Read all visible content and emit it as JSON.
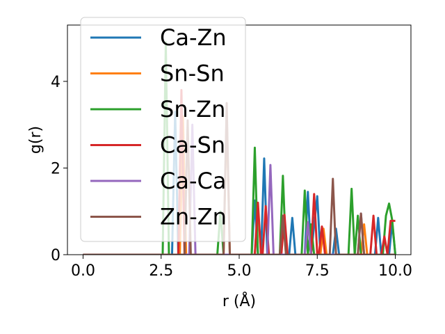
{
  "chart_data": {
    "type": "line",
    "xlabel": "r (Å)",
    "ylabel": "g(r)",
    "xlim": [
      -0.5,
      10.5
    ],
    "ylim": [
      0,
      5.3
    ],
    "xticks": [
      0.0,
      2.5,
      5.0,
      7.5,
      10.0
    ],
    "xtick_labels": [
      "0.0",
      "2.5",
      "5.0",
      "7.5",
      "10.0"
    ],
    "yticks": [
      0,
      2,
      4
    ],
    "ytick_labels": [
      "0",
      "2",
      "4"
    ],
    "grid": false,
    "legend_placement": "upper-left",
    "series": [
      {
        "name": "Ca-Zn",
        "color": "#1f77b4",
        "points": [
          [
            0,
            0
          ],
          [
            2.85,
            0
          ],
          [
            2.95,
            3.3
          ],
          [
            3.05,
            0
          ],
          [
            5.4,
            0
          ],
          [
            5.5,
            1.25
          ],
          [
            5.6,
            0
          ],
          [
            5.7,
            0
          ],
          [
            5.8,
            2.22
          ],
          [
            5.9,
            0
          ],
          [
            6.6,
            0
          ],
          [
            6.7,
            0.85
          ],
          [
            6.8,
            0
          ],
          [
            7.1,
            0
          ],
          [
            7.2,
            1.45
          ],
          [
            7.3,
            0
          ],
          [
            7.5,
            1.35
          ],
          [
            7.6,
            0
          ],
          [
            8.0,
            0
          ],
          [
            8.1,
            0.6
          ],
          [
            8.2,
            0
          ],
          [
            9.35,
            0
          ],
          [
            9.45,
            0.85
          ],
          [
            9.55,
            0
          ],
          [
            9.8,
            0
          ],
          [
            9.9,
            0.75
          ],
          [
            10.0,
            0
          ]
        ]
      },
      {
        "name": "Sn-Sn",
        "color": "#ff7f0e",
        "points": [
          [
            0,
            0
          ],
          [
            3.1,
            0
          ],
          [
            3.2,
            3.2
          ],
          [
            3.3,
            0
          ],
          [
            4.5,
            0
          ],
          [
            4.6,
            3.3
          ],
          [
            4.7,
            0
          ],
          [
            5.5,
            0
          ],
          [
            5.6,
            1.1
          ],
          [
            5.7,
            0
          ],
          [
            6.3,
            0
          ],
          [
            6.4,
            0.9
          ],
          [
            6.5,
            0
          ],
          [
            7.6,
            0
          ],
          [
            7.7,
            0.6
          ],
          [
            7.8,
            0
          ],
          [
            8.9,
            0
          ],
          [
            9.0,
            0.7
          ],
          [
            9.1,
            0
          ],
          [
            10.0,
            0
          ]
        ]
      },
      {
        "name": "Sn-Zn",
        "color": "#2ca02c",
        "points": [
          [
            0,
            0
          ],
          [
            2.55,
            0
          ],
          [
            2.65,
            4.9
          ],
          [
            2.75,
            0
          ],
          [
            4.3,
            0
          ],
          [
            4.4,
            1.0
          ],
          [
            4.5,
            0
          ],
          [
            5.4,
            0
          ],
          [
            5.5,
            2.47
          ],
          [
            5.6,
            0
          ],
          [
            6.3,
            0
          ],
          [
            6.4,
            1.82
          ],
          [
            6.5,
            0
          ],
          [
            7.0,
            0
          ],
          [
            7.1,
            1.48
          ],
          [
            7.2,
            0
          ],
          [
            7.3,
            0.7
          ],
          [
            7.4,
            0
          ],
          [
            8.5,
            0
          ],
          [
            8.6,
            1.52
          ],
          [
            8.7,
            0
          ],
          [
            8.8,
            0.9
          ],
          [
            8.9,
            0
          ],
          [
            9.6,
            0
          ],
          [
            9.7,
            0.9
          ],
          [
            9.8,
            1.18
          ],
          [
            9.9,
            0.8
          ],
          [
            10.0,
            0
          ]
        ]
      },
      {
        "name": "Ca-Sn",
        "color": "#d62728",
        "points": [
          [
            0,
            0
          ],
          [
            3.05,
            0
          ],
          [
            3.15,
            3.8
          ],
          [
            3.25,
            0
          ],
          [
            5.5,
            0
          ],
          [
            5.6,
            1.2
          ],
          [
            5.7,
            0
          ],
          [
            5.75,
            0
          ],
          [
            5.85,
            1.12
          ],
          [
            5.95,
            0
          ],
          [
            6.35,
            0
          ],
          [
            6.45,
            0.92
          ],
          [
            6.55,
            0
          ],
          [
            7.3,
            0
          ],
          [
            7.4,
            1.4
          ],
          [
            7.5,
            0
          ],
          [
            7.55,
            0
          ],
          [
            7.65,
            0.65
          ],
          [
            7.75,
            0
          ],
          [
            9.2,
            0
          ],
          [
            9.3,
            0.9
          ],
          [
            9.4,
            0
          ],
          [
            9.55,
            0
          ],
          [
            9.65,
            0.42
          ],
          [
            9.75,
            0
          ],
          [
            9.85,
            0.78
          ],
          [
            10.0,
            0.78
          ]
        ]
      },
      {
        "name": "Ca-Ca",
        "color": "#9467bd",
        "points": [
          [
            0,
            0
          ],
          [
            3.4,
            0
          ],
          [
            3.5,
            3.0
          ],
          [
            3.6,
            0
          ],
          [
            5.9,
            0
          ],
          [
            6.0,
            2.07
          ],
          [
            6.1,
            0
          ],
          [
            7.1,
            0
          ],
          [
            7.2,
            0.75
          ],
          [
            7.3,
            0
          ],
          [
            8.8,
            0
          ],
          [
            8.9,
            0.95
          ],
          [
            9.0,
            0
          ],
          [
            10.0,
            0
          ]
        ]
      },
      {
        "name": "Zn-Zn",
        "color": "#8c564b",
        "points": [
          [
            0,
            0
          ],
          [
            3.25,
            0
          ],
          [
            3.35,
            3.1
          ],
          [
            3.45,
            0
          ],
          [
            4.5,
            0
          ],
          [
            4.6,
            3.5
          ],
          [
            4.7,
            0
          ],
          [
            6.3,
            0
          ],
          [
            6.4,
            0.9
          ],
          [
            6.5,
            0
          ],
          [
            7.9,
            0
          ],
          [
            8.0,
            1.75
          ],
          [
            8.1,
            0
          ],
          [
            8.8,
            0
          ],
          [
            8.9,
            0.95
          ],
          [
            9.0,
            0
          ],
          [
            10.0,
            0
          ]
        ]
      }
    ]
  }
}
